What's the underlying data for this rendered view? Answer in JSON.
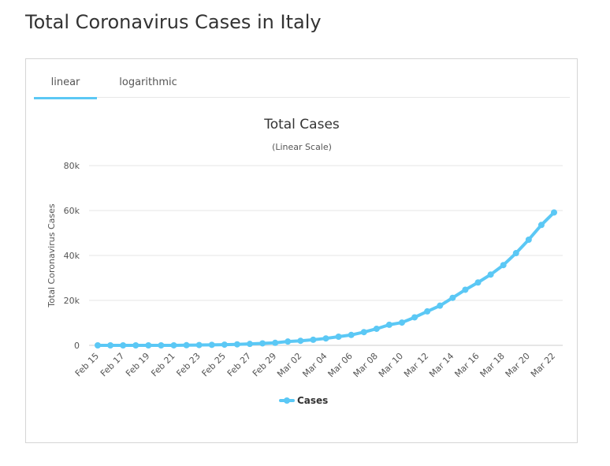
{
  "page": {
    "title": "Total Coronavirus Cases in Italy"
  },
  "tabs": [
    {
      "label": "linear",
      "active": true
    },
    {
      "label": "logarithmic",
      "active": false
    }
  ],
  "colors": {
    "series": "#5bc8f5",
    "grid": "#e6e6e6",
    "tab_active": "#5bc8f5"
  },
  "chart_data": {
    "type": "line",
    "title": "Total Cases",
    "subtitle": "(Linear Scale)",
    "xlabel": "",
    "ylabel": "Total Coronavirus Cases",
    "ylim": [
      0,
      80000
    ],
    "y_ticks": [
      0,
      20000,
      40000,
      60000,
      80000
    ],
    "y_tick_labels": [
      "0",
      "20k",
      "40k",
      "60k",
      "80k"
    ],
    "x": [
      "Feb 15",
      "Feb 16",
      "Feb 17",
      "Feb 18",
      "Feb 19",
      "Feb 20",
      "Feb 21",
      "Feb 22",
      "Feb 23",
      "Feb 24",
      "Feb 25",
      "Feb 26",
      "Feb 27",
      "Feb 28",
      "Feb 29",
      "Mar 01",
      "Mar 02",
      "Mar 03",
      "Mar 04",
      "Mar 05",
      "Mar 06",
      "Mar 07",
      "Mar 08",
      "Mar 09",
      "Mar 10",
      "Mar 11",
      "Mar 12",
      "Mar 13",
      "Mar 14",
      "Mar 15",
      "Mar 16",
      "Mar 17",
      "Mar 18",
      "Mar 19",
      "Mar 20",
      "Mar 21",
      "Mar 22"
    ],
    "x_tick_labels": [
      "Feb 15",
      "Feb 17",
      "Feb 19",
      "Feb 21",
      "Feb 23",
      "Feb 25",
      "Feb 27",
      "Feb 29",
      "Mar 02",
      "Mar 04",
      "Mar 06",
      "Mar 08",
      "Mar 10",
      "Mar 12",
      "Mar 14",
      "Mar 16",
      "Mar 18",
      "Mar 20",
      "Mar 22"
    ],
    "grid": true,
    "legend": "bottom-center",
    "series": [
      {
        "name": "Cases",
        "values": [
          3,
          3,
          3,
          3,
          3,
          3,
          20,
          79,
          150,
          227,
          320,
          445,
          650,
          888,
          1128,
          1694,
          2036,
          2502,
          3089,
          3858,
          4636,
          5883,
          7375,
          9172,
          10149,
          12462,
          15113,
          17660,
          21157,
          24747,
          27980,
          31506,
          35713,
          41035,
          47021,
          53578,
          59138
        ]
      }
    ]
  }
}
